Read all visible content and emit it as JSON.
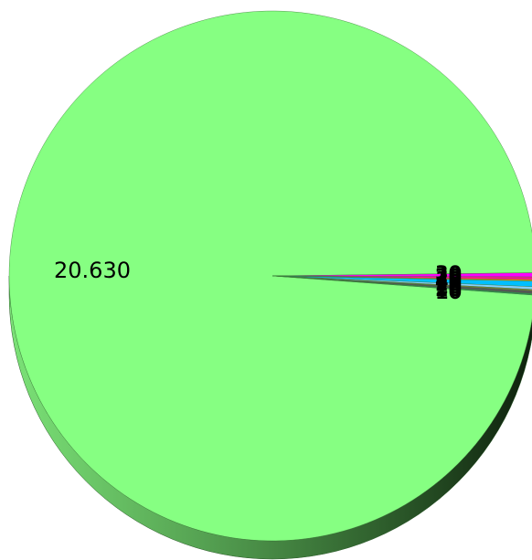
{
  "chart_data": {
    "type": "pie",
    "style": "3d",
    "legend": "none",
    "slices": [
      {
        "label": "20.630",
        "value": 20.63,
        "color": "#86ff82"
      },
      {
        "label": "30",
        "value": 0.03,
        "color": "#ff00ff"
      },
      {
        "label": "20",
        "value": 0.02,
        "color": "#ff1493"
      },
      {
        "label": "10",
        "value": 0.01,
        "color": "#ff8c00"
      },
      {
        "label": "40",
        "value": 0.04,
        "color": "#00bfff"
      },
      {
        "label": "20",
        "value": 0.02,
        "color": "#87cefa"
      },
      {
        "label": "10",
        "value": 0.01,
        "color": "#8b7d3a"
      },
      {
        "label": "20",
        "value": 0.02,
        "color": "#555555"
      },
      {
        "label": "10",
        "value": 0.01,
        "color": "#2e8b57"
      }
    ]
  }
}
